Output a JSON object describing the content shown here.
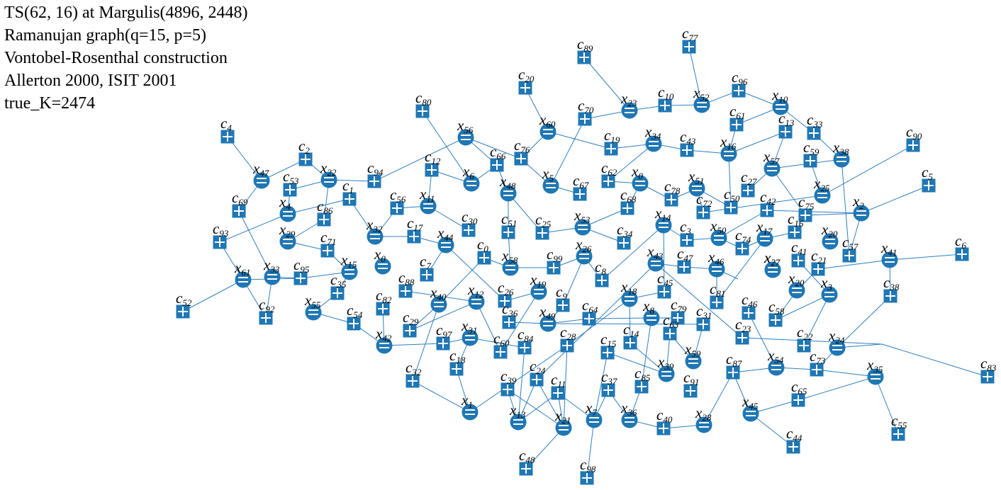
{
  "header": {
    "line1": "TS(62, 16) at Margulis(4896, 2448)",
    "line2": "Ramanujan graph(q=15, p=5)",
    "line3": "Vontobel-Rosenthal construction",
    "line4": "Allerton 2000, ISIT 2001",
    "line5": "true_K=2474"
  },
  "colors": {
    "node": "#1f77b4",
    "edge": "#2f7fc0",
    "mark": "#ffffff"
  },
  "variable_nodes": [
    {
      "id": "x0a",
      "name": "x",
      "sub": "0"
    },
    {
      "id": "x0b",
      "name": "x",
      "sub": "0"
    },
    {
      "id": "x1",
      "name": "x",
      "sub": "1"
    },
    {
      "id": "x2",
      "name": "x",
      "sub": "2"
    },
    {
      "id": "x3",
      "name": "x",
      "sub": "3"
    },
    {
      "id": "x4",
      "name": "x",
      "sub": "4"
    },
    {
      "id": "x5",
      "name": "x",
      "sub": "5"
    },
    {
      "id": "x6",
      "name": "x",
      "sub": "6"
    },
    {
      "id": "x7",
      "name": "x",
      "sub": "7"
    },
    {
      "id": "x8",
      "name": "x",
      "sub": "8"
    },
    {
      "id": "x10",
      "name": "x",
      "sub": "10"
    },
    {
      "id": "x11",
      "name": "x",
      "sub": "11"
    },
    {
      "id": "x12",
      "name": "x",
      "sub": "12"
    },
    {
      "id": "x13",
      "name": "x",
      "sub": "13"
    },
    {
      "id": "x14",
      "name": "x",
      "sub": "14"
    },
    {
      "id": "x15",
      "name": "x",
      "sub": "15"
    },
    {
      "id": "x16",
      "name": "x",
      "sub": "16"
    },
    {
      "id": "x17",
      "name": "x",
      "sub": "17"
    },
    {
      "id": "x18",
      "name": "x",
      "sub": "18"
    },
    {
      "id": "x19",
      "name": "x",
      "sub": "19"
    },
    {
      "id": "x20a",
      "name": "x",
      "sub": "20"
    },
    {
      "id": "x20b",
      "name": "x",
      "sub": "20"
    },
    {
      "id": "x21",
      "name": "x",
      "sub": "21"
    },
    {
      "id": "x22",
      "name": "x",
      "sub": "22"
    },
    {
      "id": "x23",
      "name": "x",
      "sub": "23"
    },
    {
      "id": "x24",
      "name": "x",
      "sub": "24"
    },
    {
      "id": "x25",
      "name": "x",
      "sub": "25"
    },
    {
      "id": "x26",
      "name": "x",
      "sub": "26"
    },
    {
      "id": "x27a",
      "name": "x",
      "sub": "27"
    },
    {
      "id": "x27b",
      "name": "x",
      "sub": "27"
    },
    {
      "id": "x28",
      "name": "x",
      "sub": "28"
    },
    {
      "id": "x29",
      "name": "x",
      "sub": "29"
    },
    {
      "id": "x31",
      "name": "x",
      "sub": "31"
    },
    {
      "id": "x32",
      "name": "x",
      "sub": "32"
    },
    {
      "id": "x33",
      "name": "x",
      "sub": "33"
    },
    {
      "id": "x34",
      "name": "x",
      "sub": "34"
    },
    {
      "id": "x35",
      "name": "x",
      "sub": "35"
    },
    {
      "id": "x36",
      "name": "x",
      "sub": "36"
    },
    {
      "id": "x38",
      "name": "x",
      "sub": "38"
    },
    {
      "id": "x39",
      "name": "x",
      "sub": "39"
    },
    {
      "id": "x40",
      "name": "x",
      "sub": "40"
    },
    {
      "id": "x41",
      "name": "x",
      "sub": "41"
    },
    {
      "id": "x42",
      "name": "x",
      "sub": "42"
    },
    {
      "id": "x43",
      "name": "x",
      "sub": "43"
    },
    {
      "id": "x44",
      "name": "x",
      "sub": "44"
    },
    {
      "id": "x45",
      "name": "x",
      "sub": "45"
    },
    {
      "id": "x46",
      "name": "x",
      "sub": "46"
    },
    {
      "id": "x47",
      "name": "x",
      "sub": "47"
    },
    {
      "id": "x48",
      "name": "x",
      "sub": "48"
    },
    {
      "id": "x49",
      "name": "x",
      "sub": "49"
    },
    {
      "id": "x50",
      "name": "x",
      "sub": "50"
    },
    {
      "id": "x51",
      "name": "x",
      "sub": "51"
    },
    {
      "id": "x52",
      "name": "x",
      "sub": "52"
    },
    {
      "id": "x53",
      "name": "x",
      "sub": "53"
    },
    {
      "id": "x54",
      "name": "x",
      "sub": "54"
    },
    {
      "id": "x55",
      "name": "x",
      "sub": "55"
    },
    {
      "id": "x56",
      "name": "x",
      "sub": "56"
    },
    {
      "id": "x57",
      "name": "x",
      "sub": "57"
    },
    {
      "id": "x58",
      "name": "x",
      "sub": "58"
    },
    {
      "id": "x59",
      "name": "x",
      "sub": "59"
    },
    {
      "id": "x60",
      "name": "x",
      "sub": "60"
    },
    {
      "id": "x61",
      "name": "x",
      "sub": "61"
    }
  ],
  "check_nodes": [
    {
      "id": "c0",
      "name": "c",
      "sub": "0"
    },
    {
      "id": "c1",
      "name": "c",
      "sub": "1"
    },
    {
      "id": "c2",
      "name": "c",
      "sub": "2"
    },
    {
      "id": "c3",
      "name": "c",
      "sub": "3"
    },
    {
      "id": "c4",
      "name": "c",
      "sub": "4"
    },
    {
      "id": "c5",
      "name": "c",
      "sub": "5"
    },
    {
      "id": "c6",
      "name": "c",
      "sub": "6"
    },
    {
      "id": "c7",
      "name": "c",
      "sub": "7"
    },
    {
      "id": "c8",
      "name": "c",
      "sub": "8"
    },
    {
      "id": "c9",
      "name": "c",
      "sub": "9"
    },
    {
      "id": "c10",
      "name": "c",
      "sub": "10"
    },
    {
      "id": "c11",
      "name": "c",
      "sub": "11"
    },
    {
      "id": "c12",
      "name": "c",
      "sub": "12"
    },
    {
      "id": "c13",
      "name": "c",
      "sub": "13"
    },
    {
      "id": "c14",
      "name": "c",
      "sub": "14"
    },
    {
      "id": "c15",
      "name": "c",
      "sub": "15"
    },
    {
      "id": "c16",
      "name": "c",
      "sub": "16"
    },
    {
      "id": "c17",
      "name": "c",
      "sub": "17"
    },
    {
      "id": "c18",
      "name": "c",
      "sub": "18"
    },
    {
      "id": "c19",
      "name": "c",
      "sub": "19"
    },
    {
      "id": "c20",
      "name": "c",
      "sub": "20"
    },
    {
      "id": "c21",
      "name": "c",
      "sub": "21"
    },
    {
      "id": "c22",
      "name": "c",
      "sub": "22"
    },
    {
      "id": "c23",
      "name": "c",
      "sub": "23"
    },
    {
      "id": "c24",
      "name": "c",
      "sub": "24"
    },
    {
      "id": "c25",
      "name": "c",
      "sub": "25"
    },
    {
      "id": "c26",
      "name": "c",
      "sub": "26"
    },
    {
      "id": "c27",
      "name": "c",
      "sub": "27"
    },
    {
      "id": "c28",
      "name": "c",
      "sub": "28"
    },
    {
      "id": "c29",
      "name": "c",
      "sub": "29"
    },
    {
      "id": "c30",
      "name": "c",
      "sub": "30"
    },
    {
      "id": "c31",
      "name": "c",
      "sub": "31"
    },
    {
      "id": "c32",
      "name": "c",
      "sub": "32"
    },
    {
      "id": "c33",
      "name": "c",
      "sub": "33"
    },
    {
      "id": "c34",
      "name": "c",
      "sub": "34"
    },
    {
      "id": "c35",
      "name": "c",
      "sub": "35"
    },
    {
      "id": "c36",
      "name": "c",
      "sub": "36"
    },
    {
      "id": "c37",
      "name": "c",
      "sub": "37"
    },
    {
      "id": "c38",
      "name": "c",
      "sub": "38"
    },
    {
      "id": "c39",
      "name": "c",
      "sub": "39"
    },
    {
      "id": "c40",
      "name": "c",
      "sub": "40"
    },
    {
      "id": "c41",
      "name": "c",
      "sub": "41"
    },
    {
      "id": "c42",
      "name": "c",
      "sub": "42"
    },
    {
      "id": "c43",
      "name": "c",
      "sub": "43"
    },
    {
      "id": "c44",
      "name": "c",
      "sub": "44"
    },
    {
      "id": "c45",
      "name": "c",
      "sub": "45"
    },
    {
      "id": "c46",
      "name": "c",
      "sub": "46"
    },
    {
      "id": "c47",
      "name": "c",
      "sub": "47"
    },
    {
      "id": "c48",
      "name": "c",
      "sub": "48"
    },
    {
      "id": "c50",
      "name": "c",
      "sub": "50"
    },
    {
      "id": "c51",
      "name": "c",
      "sub": "51"
    },
    {
      "id": "c52",
      "name": "c",
      "sub": "52"
    },
    {
      "id": "c53",
      "name": "c",
      "sub": "53"
    },
    {
      "id": "c54",
      "name": "c",
      "sub": "54"
    },
    {
      "id": "c55",
      "name": "c",
      "sub": "55"
    },
    {
      "id": "c56",
      "name": "c",
      "sub": "56"
    },
    {
      "id": "c57",
      "name": "c",
      "sub": "57"
    },
    {
      "id": "c58",
      "name": "c",
      "sub": "58"
    },
    {
      "id": "c59",
      "name": "c",
      "sub": "59"
    },
    {
      "id": "c60",
      "name": "c",
      "sub": "60"
    },
    {
      "id": "c61",
      "name": "c",
      "sub": "61"
    },
    {
      "id": "c62",
      "name": "c",
      "sub": "62"
    },
    {
      "id": "c63",
      "name": "c",
      "sub": "63"
    },
    {
      "id": "c64",
      "name": "c",
      "sub": "64"
    },
    {
      "id": "c65",
      "name": "c",
      "sub": "65"
    },
    {
      "id": "c66",
      "name": "c",
      "sub": "66"
    },
    {
      "id": "c67",
      "name": "c",
      "sub": "67"
    },
    {
      "id": "c68",
      "name": "c",
      "sub": "68"
    },
    {
      "id": "c69",
      "name": "c",
      "sub": "69"
    },
    {
      "id": "c70",
      "name": "c",
      "sub": "70"
    },
    {
      "id": "c71",
      "name": "c",
      "sub": "71"
    },
    {
      "id": "c72",
      "name": "c",
      "sub": "72"
    },
    {
      "id": "c73",
      "name": "c",
      "sub": "73"
    },
    {
      "id": "c74",
      "name": "c",
      "sub": "74"
    },
    {
      "id": "c75",
      "name": "c",
      "sub": "75"
    },
    {
      "id": "c76",
      "name": "c",
      "sub": "76"
    },
    {
      "id": "c77",
      "name": "c",
      "sub": "77"
    },
    {
      "id": "c78",
      "name": "c",
      "sub": "78"
    },
    {
      "id": "c79",
      "name": "c",
      "sub": "79"
    },
    {
      "id": "c80",
      "name": "c",
      "sub": "80"
    },
    {
      "id": "c81",
      "name": "c",
      "sub": "81"
    },
    {
      "id": "c82",
      "name": "c",
      "sub": "82"
    },
    {
      "id": "c83",
      "name": "c",
      "sub": "83"
    },
    {
      "id": "c84",
      "name": "c",
      "sub": "84"
    },
    {
      "id": "c85",
      "name": "c",
      "sub": "85"
    },
    {
      "id": "c86",
      "name": "c",
      "sub": "86"
    },
    {
      "id": "c87",
      "name": "c",
      "sub": "87"
    },
    {
      "id": "c88",
      "name": "c",
      "sub": "88"
    },
    {
      "id": "c89",
      "name": "c",
      "sub": "89"
    },
    {
      "id": "c90",
      "name": "c",
      "sub": "90"
    },
    {
      "id": "c91",
      "name": "c",
      "sub": "91"
    },
    {
      "id": "c92",
      "name": "c",
      "sub": "92"
    },
    {
      "id": "c93",
      "name": "c",
      "sub": "93"
    },
    {
      "id": "c94",
      "name": "c",
      "sub": "94"
    },
    {
      "id": "c95",
      "name": "c",
      "sub": "95"
    },
    {
      "id": "c96",
      "name": "c",
      "sub": "96"
    },
    {
      "id": "c97",
      "name": "c",
      "sub": "97"
    },
    {
      "id": "c98",
      "name": "c",
      "sub": "98"
    },
    {
      "id": "c99",
      "name": "c",
      "sub": "99"
    }
  ],
  "edges": [
    [
      "c4",
      "x47"
    ],
    [
      "x47",
      "c2"
    ],
    [
      "x47",
      "c69"
    ],
    [
      "c69",
      "x33"
    ],
    [
      "c2",
      "x22"
    ],
    [
      "x22",
      "c94"
    ],
    [
      "x22",
      "c53"
    ],
    [
      "c53",
      "x4"
    ],
    [
      "x4",
      "c1"
    ],
    [
      "x4",
      "c93"
    ],
    [
      "c93",
      "x61"
    ],
    [
      "x61",
      "c95"
    ],
    [
      "x61",
      "c52"
    ],
    [
      "x61",
      "c92"
    ],
    [
      "c92",
      "x33"
    ],
    [
      "x33",
      "c95"
    ],
    [
      "c95",
      "x15"
    ],
    [
      "x15",
      "c71"
    ],
    [
      "c71",
      "x29"
    ],
    [
      "x29",
      "c86"
    ],
    [
      "c86",
      "x22"
    ],
    [
      "c1",
      "x32"
    ],
    [
      "x32",
      "c56"
    ],
    [
      "c56",
      "x11"
    ],
    [
      "x11",
      "c12"
    ],
    [
      "x11",
      "c30"
    ],
    [
      "c12",
      "x6"
    ],
    [
      "x6",
      "c80"
    ],
    [
      "x6",
      "c66"
    ],
    [
      "c94",
      "x56"
    ],
    [
      "x56",
      "c66"
    ],
    [
      "x56",
      "c76"
    ],
    [
      "c76",
      "x60"
    ],
    [
      "x60",
      "c20"
    ],
    [
      "x60",
      "c19"
    ],
    [
      "c19",
      "x34"
    ],
    [
      "x34",
      "c62"
    ],
    [
      "x34",
      "c43"
    ],
    [
      "c43",
      "x16"
    ],
    [
      "x16",
      "c13"
    ],
    [
      "x16",
      "c61"
    ],
    [
      "c61",
      "x10"
    ],
    [
      "x10",
      "c96"
    ],
    [
      "c96",
      "x52"
    ],
    [
      "x52",
      "c77"
    ],
    [
      "x52",
      "c10"
    ],
    [
      "c10",
      "x23"
    ],
    [
      "x23",
      "c89"
    ],
    [
      "x23",
      "c70"
    ],
    [
      "c70",
      "x5"
    ],
    [
      "x5",
      "c76"
    ],
    [
      "x5",
      "c67"
    ],
    [
      "x10",
      "c33"
    ],
    [
      "c33",
      "x38"
    ],
    [
      "x38",
      "c57"
    ],
    [
      "x38",
      "x57"
    ],
    [
      "c13",
      "x57"
    ],
    [
      "x57",
      "c27"
    ],
    [
      "x57",
      "c75"
    ],
    [
      "c75",
      "x2"
    ],
    [
      "x2",
      "c5"
    ],
    [
      "x2",
      "c57"
    ],
    [
      "x2",
      "c42"
    ],
    [
      "c42",
      "x50"
    ],
    [
      "c90",
      "x25"
    ],
    [
      "x25",
      "c59"
    ],
    [
      "x25",
      "c72"
    ],
    [
      "c72",
      "x51"
    ],
    [
      "x51",
      "c78"
    ],
    [
      "x51",
      "c50"
    ],
    [
      "c50",
      "x16"
    ],
    [
      "c78",
      "x9"
    ],
    [
      "x9",
      "c62"
    ],
    [
      "x9",
      "c68"
    ],
    [
      "c68",
      "x53"
    ],
    [
      "x53",
      "c25"
    ],
    [
      "x53",
      "c34"
    ],
    [
      "c25",
      "x48"
    ],
    [
      "x48",
      "c51"
    ],
    [
      "x48",
      "c66"
    ],
    [
      "c51",
      "x58"
    ],
    [
      "x58",
      "c0"
    ],
    [
      "c0",
      "x40"
    ],
    [
      "x58",
      "c99"
    ],
    [
      "c99",
      "x26"
    ],
    [
      "x26",
      "c53x"
    ],
    [
      "x26",
      "c8"
    ],
    [
      "c8",
      "x14"
    ],
    [
      "x14",
      "c24x"
    ],
    [
      "x14",
      "c3"
    ],
    [
      "c3",
      "x50"
    ],
    [
      "x50",
      "c74"
    ],
    [
      "c74",
      "x17"
    ],
    [
      "x17",
      "c16"
    ],
    [
      "c16",
      "x20"
    ],
    [
      "x20",
      "c37"
    ],
    [
      "x17",
      "c81"
    ],
    [
      "c81",
      "x46"
    ],
    [
      "x46",
      "c47"
    ],
    [
      "c47",
      "x43"
    ],
    [
      "x43",
      "c24"
    ],
    [
      "x43",
      "c23"
    ],
    [
      "x46",
      "c49"
    ],
    [
      "c49",
      "x27"
    ],
    [
      "x27",
      "c41"
    ],
    [
      "c41",
      "x3"
    ],
    [
      "x3",
      "c22"
    ],
    [
      "x3",
      "c58"
    ],
    [
      "c58",
      "x20b"
    ],
    [
      "x20b",
      "c21"
    ],
    [
      "c21",
      "x41"
    ],
    [
      "x41",
      "c6"
    ],
    [
      "x41",
      "c38"
    ],
    [
      "c38",
      "x24"
    ],
    [
      "x24",
      "c73"
    ],
    [
      "c73",
      "x54"
    ],
    [
      "x54",
      "c46"
    ],
    [
      "x54",
      "c87"
    ],
    [
      "c87",
      "x28"
    ],
    [
      "x28",
      "c40"
    ],
    [
      "c40",
      "x36"
    ],
    [
      "x36",
      "c85"
    ],
    [
      "c85",
      "x8"
    ],
    [
      "x8",
      "c79"
    ],
    [
      "x8",
      "c64"
    ],
    [
      "c64",
      "x49"
    ],
    [
      "x49",
      "c36"
    ],
    [
      "x49",
      "c9"
    ],
    [
      "c9",
      "x26"
    ],
    [
      "x49",
      "c31"
    ],
    [
      "c31",
      "x59"
    ],
    [
      "x59",
      "c63"
    ],
    [
      "c63",
      "x39"
    ],
    [
      "x39",
      "c15"
    ],
    [
      "c15",
      "x7"
    ],
    [
      "x7",
      "c37"
    ],
    [
      "c37",
      "x36"
    ],
    [
      "x7",
      "c98"
    ],
    [
      "x7",
      "c11"
    ],
    [
      "c11",
      "x13"
    ],
    [
      "x13",
      "c84"
    ],
    [
      "c84",
      "x31"
    ],
    [
      "x31",
      "c97"
    ],
    [
      "c97",
      "x42"
    ],
    [
      "x42",
      "c82"
    ],
    [
      "c82",
      "x0"
    ],
    [
      "x0",
      "c7"
    ],
    [
      "c7",
      "x44"
    ],
    [
      "x44",
      "c17"
    ],
    [
      "c17",
      "x32"
    ],
    [
      "x44",
      "c26"
    ],
    [
      "c26",
      "x19"
    ],
    [
      "x19",
      "c60"
    ],
    [
      "c60",
      "x12"
    ],
    [
      "x12",
      "c88"
    ],
    [
      "c88",
      "x0"
    ],
    [
      "x12",
      "c29"
    ],
    [
      "c29",
      "x40"
    ],
    [
      "x40",
      "c32"
    ],
    [
      "c32",
      "x1"
    ],
    [
      "x1",
      "c18"
    ],
    [
      "c18",
      "x31"
    ],
    [
      "x1",
      "c28"
    ],
    [
      "c28",
      "x18"
    ],
    [
      "x18",
      "c14"
    ],
    [
      "c14",
      "x39"
    ],
    [
      "x18",
      "c45"
    ],
    [
      "c45",
      "x14"
    ],
    [
      "x21",
      "c48"
    ],
    [
      "x21",
      "c39"
    ],
    [
      "c39",
      "x13"
    ],
    [
      "x21",
      "c28"
    ],
    [
      "x21",
      "c11"
    ],
    [
      "x35",
      "c55"
    ],
    [
      "x35",
      "c65"
    ],
    [
      "c65",
      "x45"
    ],
    [
      "x45",
      "c44"
    ],
    [
      "x45",
      "c87"
    ],
    [
      "x35",
      "c73"
    ],
    [
      "x37",
      "c83"
    ],
    [
      "x37",
      "x24"
    ],
    [
      "x37",
      "c23"
    ],
    [
      "x55",
      "c35"
    ],
    [
      "c35",
      "x15"
    ],
    [
      "x55",
      "c54"
    ],
    [
      "c54",
      "x42"
    ],
    [
      "x0",
      "c9"
    ],
    [
      "x13",
      "c24"
    ],
    [
      "c24",
      "x21"
    ]
  ]
}
